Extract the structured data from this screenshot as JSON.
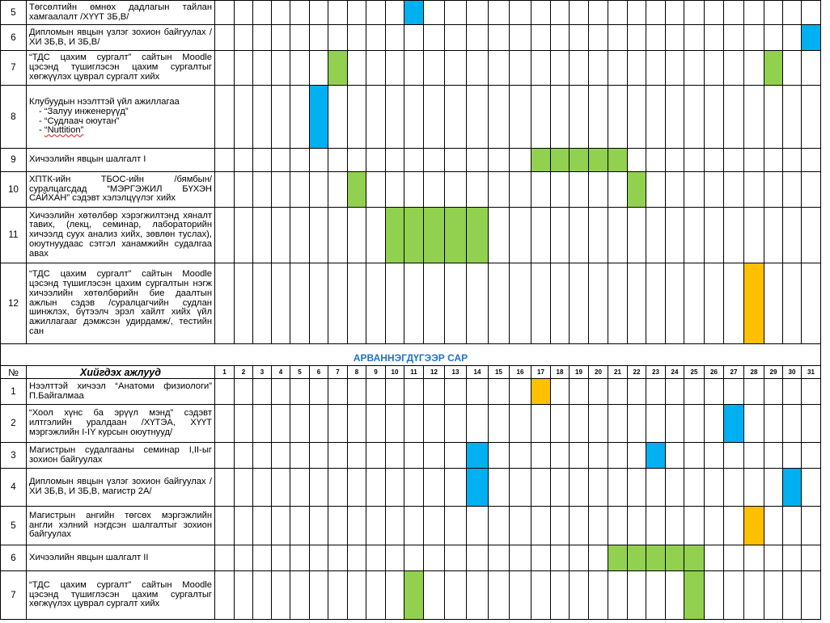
{
  "colors": {
    "blue": "#00b0f0",
    "green": "#92d050",
    "orange": "#ffc000",
    "month_title": "#1f73c6"
  },
  "days": [
    "1",
    "2",
    "3",
    "4",
    "5",
    "6",
    "7",
    "8",
    "9",
    "10",
    "11",
    "12",
    "13",
    "14",
    "15",
    "16",
    "17",
    "18",
    "19",
    "20",
    "21",
    "22",
    "23",
    "24",
    "25",
    "26",
    "27",
    "28",
    "29",
    "30",
    "31"
  ],
  "header": {
    "no_label": "№",
    "task_label": "Хийгдэх ажлууд"
  },
  "section2_title": "АРВАННЭГДҮГЭЭР САР",
  "section1_rows": [
    {
      "no": "5",
      "text": "Төгсөлтийн өмнөх дадлагын тайлан хамгаалалт /ХҮҮТ 3Б,В/",
      "marks": [
        {
          "day": 11,
          "color": "blue"
        }
      ]
    },
    {
      "no": "6",
      "text": "Дипломын явцын үзлэг зохион байгуулах /ХИ 3Б,В, И 3Б,В/",
      "marks": [
        {
          "day": 31,
          "color": "blue"
        }
      ]
    },
    {
      "no": "7",
      "text": "“ТДС цахим сургалт” сайтын Moodle цэсэнд түшиглэсэн цахим сургалтыг хөгжүүлэх цуврал сургалт хийх",
      "marks": [
        {
          "day": 7,
          "color": "green"
        },
        {
          "day": 29,
          "color": "green"
        }
      ]
    },
    {
      "no": "8",
      "text": "Клубуудын нээлттэй үйл ажиллагаа",
      "sub": [
        "“Залуу инженерүүд”",
        "“Судлаач оюутан”",
        "“Nuttition”"
      ],
      "marks": [
        {
          "day": 6,
          "color": "blue"
        }
      ]
    },
    {
      "no": "9",
      "text": "Хичээлийн явцын шалгалт I",
      "marks": [
        {
          "day": 17,
          "color": "green"
        },
        {
          "day": 18,
          "color": "green"
        },
        {
          "day": 19,
          "color": "green"
        },
        {
          "day": 20,
          "color": "green"
        },
        {
          "day": 21,
          "color": "green"
        }
      ]
    },
    {
      "no": "10",
      "text": "ХПТК-ийн ТБОС-ийн /бямбын/ суралцагсдад “МЭРГЭЖИЛ БҮХЭН САЙХАН” сэдэвт хэлэлцүүлэг хийх",
      "marks": [
        {
          "day": 8,
          "color": "green"
        },
        {
          "day": 22,
          "color": "green"
        }
      ]
    },
    {
      "no": "11",
      "text": "Хичээлийн хөтөлбөр хэрэгжилтэнд хяналт тавих, (лекц, семинар, лабораторийн хичээлд суух анализ хийх, зөвлөн туслах), оюутнуудаас сэтгэл ханамжийн судалгаа авах",
      "marks": [
        {
          "day": 10,
          "color": "green"
        },
        {
          "day": 11,
          "color": "green"
        },
        {
          "day": 12,
          "color": "green"
        },
        {
          "day": 13,
          "color": "green"
        },
        {
          "day": 14,
          "color": "green"
        }
      ]
    },
    {
      "no": "12",
      "text": "“ТДС цахим сургалт” сайтын Moodle цэсэнд түшиглэсэн цахим сургалтын нэгж хичээлийн хөтөлбөрийн бие даалтын ажлын сэдэв /суралцагчийн судлан шинжлэх, бүтээлч эрэл хайлт хийх үйл ажиллагааг дэмжсэн удирдамж/, тестийн сан",
      "marks": [
        {
          "day": 28,
          "color": "orange"
        }
      ]
    }
  ],
  "section2_rows": [
    {
      "no": "1",
      "text": "Нээлттэй хичээл “Анатоми физиологи” П.Байгалмаа",
      "marks": [
        {
          "day": 17,
          "color": "orange"
        }
      ]
    },
    {
      "no": "2",
      "text": "“Хоол хүнс ба эрүүл мэнд” сэдэвт илтгэлийн уралдаан /ХҮТЭА, ХҮҮТ мэргэжлийн I-IY курсын оюутнууд/",
      "marks": [
        {
          "day": 27,
          "color": "blue"
        }
      ]
    },
    {
      "no": "3",
      "text": "Магистрын судалгааны семинар I,II-ыг зохион байгуулах",
      "marks": [
        {
          "day": 14,
          "color": "blue"
        },
        {
          "day": 23,
          "color": "blue"
        }
      ]
    },
    {
      "no": "4",
      "text": "Дипломын явцын үзлэг зохион байгуулах /ХИ 3Б,В, И 3Б,В, магистр 2А/",
      "marks": [
        {
          "day": 14,
          "color": "blue"
        },
        {
          "day": 30,
          "color": "blue"
        }
      ]
    },
    {
      "no": "5",
      "text": "Магистрын ангийн төгсөх мэргэжлийн англи хэлний нэгдсэн шалгалтыг зохион байгуулах",
      "marks": [
        {
          "day": 28,
          "color": "orange"
        }
      ]
    },
    {
      "no": "6",
      "text": "Хичээлийн явцын шалгалт II",
      "marks": [
        {
          "day": 21,
          "color": "green"
        },
        {
          "day": 22,
          "color": "green"
        },
        {
          "day": 23,
          "color": "green"
        },
        {
          "day": 24,
          "color": "green"
        },
        {
          "day": 25,
          "color": "green"
        }
      ]
    },
    {
      "no": "7",
      "text": "“ТДС цахим сургалт” сайтын Moodle цэсэнд түшиглэсэн цахим сургалтыг хөгжүүлэх цуврал сургалт хийх",
      "marks": [
        {
          "day": 11,
          "color": "green"
        },
        {
          "day": 25,
          "color": "green"
        }
      ]
    }
  ]
}
